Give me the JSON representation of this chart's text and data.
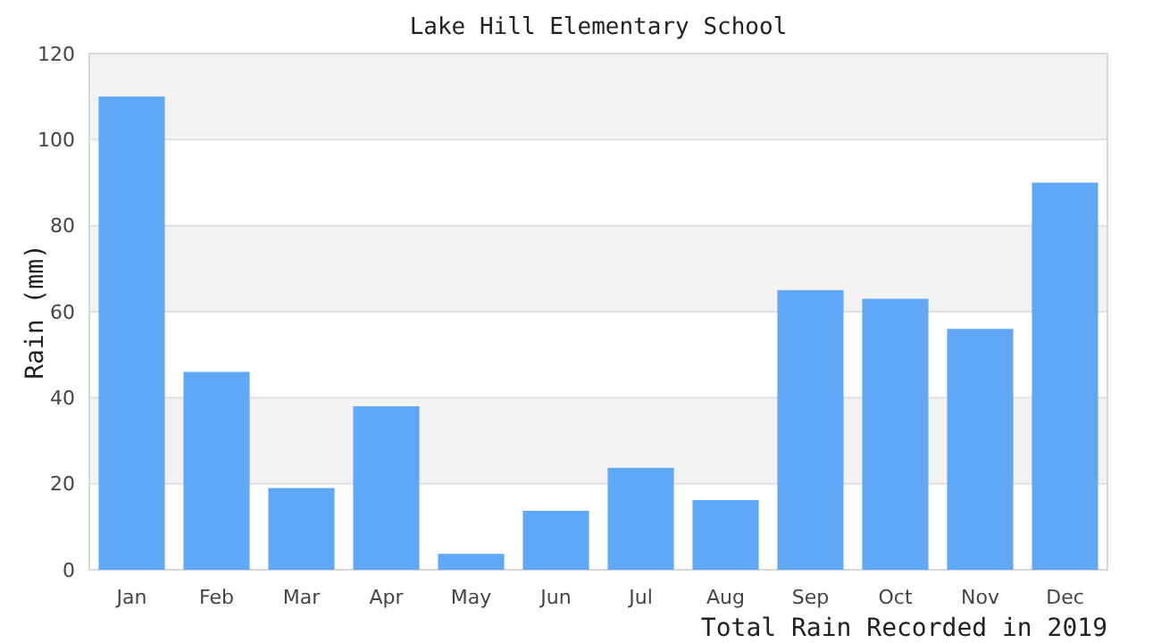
{
  "chart_data": {
    "type": "bar",
    "title": "Lake Hill Elementary School",
    "xlabel": "Total Rain Recorded in 2019",
    "ylabel": "Rain (mm)",
    "categories": [
      "Jan",
      "Feb",
      "Mar",
      "Apr",
      "May",
      "Jun",
      "Jul",
      "Aug",
      "Sep",
      "Oct",
      "Nov",
      "Dec"
    ],
    "values": [
      110,
      46,
      19,
      38,
      3.7,
      13.7,
      23.7,
      16.2,
      65,
      63,
      56,
      90
    ],
    "color": "#60a8f5",
    "ylim": [
      0,
      120
    ],
    "yticks": [
      0,
      20,
      40,
      60,
      80,
      100,
      120
    ],
    "grid": true
  }
}
